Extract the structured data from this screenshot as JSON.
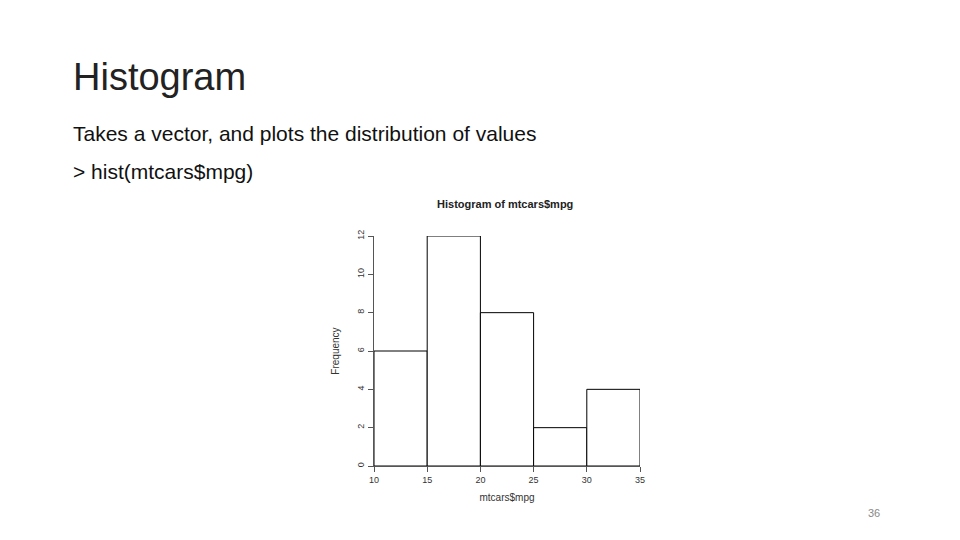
{
  "slide": {
    "title": "Histogram",
    "text": [
      "Takes a vector, and plots the distribution of values",
      "> hist(mtcars$mpg)"
    ],
    "page_number": "36"
  },
  "chart_data": {
    "type": "histogram",
    "title": "Histogram of mtcars$mpg",
    "x_label": "mtcars$mpg",
    "y_label": "Frequency",
    "bins": [
      10,
      15,
      20,
      25,
      30,
      35
    ],
    "values": [
      6,
      12,
      8,
      2,
      4
    ],
    "color": "#ffffff",
    "xlim": [
      10,
      35
    ],
    "xticks": [
      10,
      15,
      20,
      25,
      30,
      35
    ],
    "ylim": [
      0,
      12
    ],
    "yticks": [
      0,
      2,
      4,
      6,
      8,
      10,
      12
    ],
    "grid": false
  }
}
